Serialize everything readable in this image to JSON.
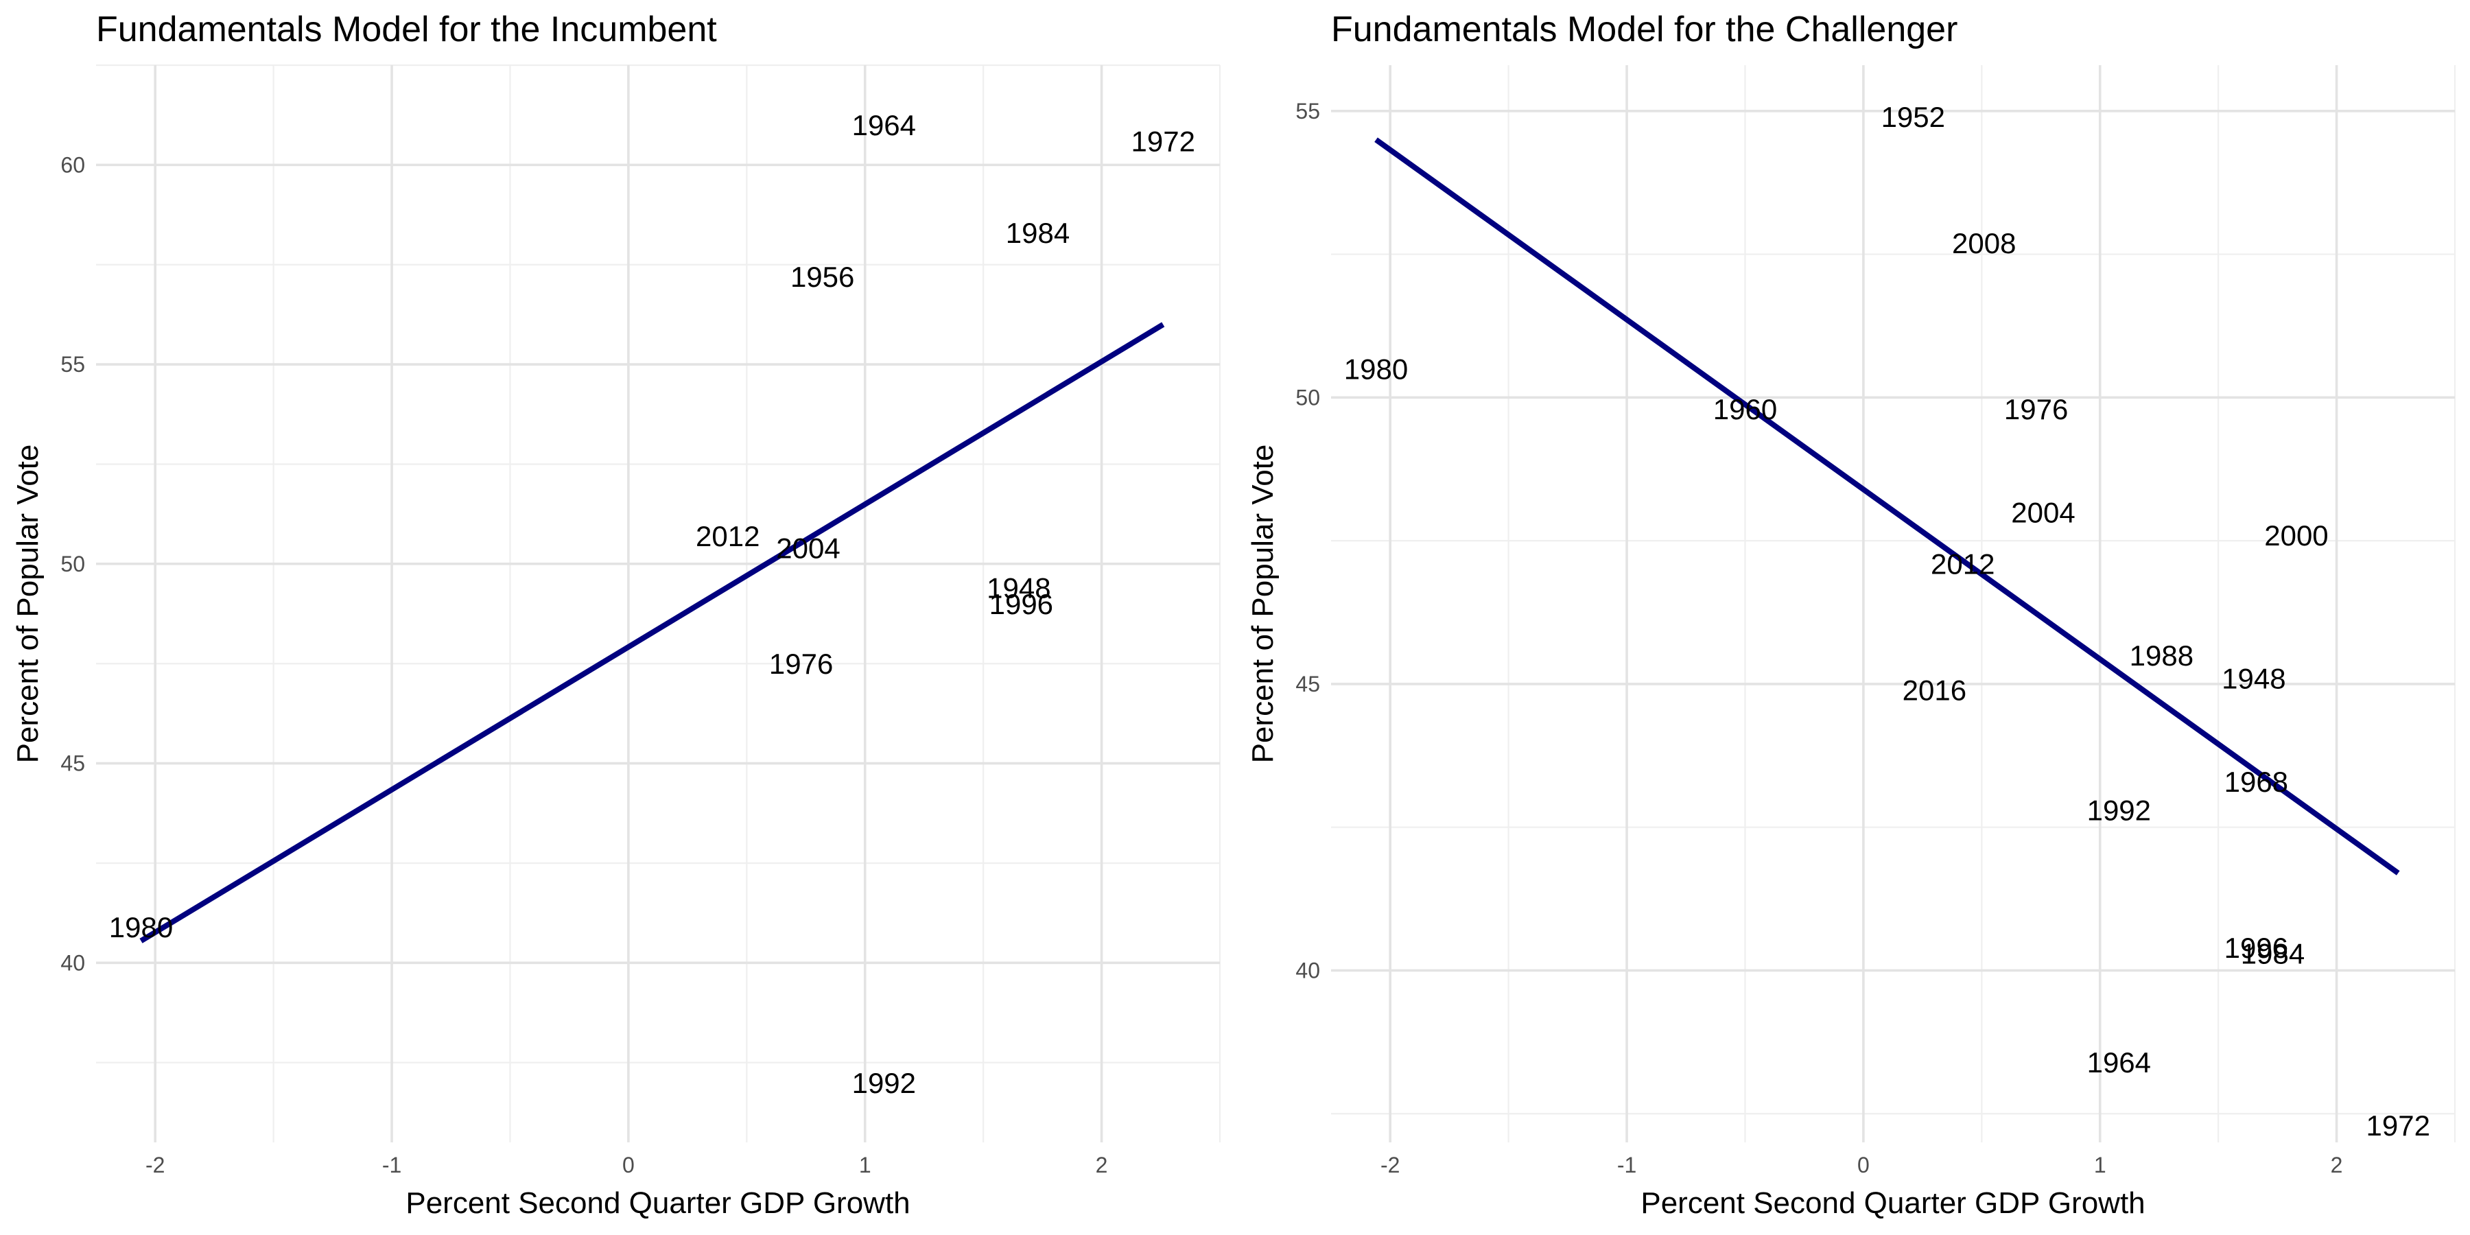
{
  "chart_data": [
    {
      "type": "scatter",
      "title": "Fundamentals Model for the Incumbent",
      "xlabel": "Percent Second Quarter GDP Growth",
      "ylabel": "Percent of Popular Vote",
      "xlim": [
        -2.25,
        2.5
      ],
      "ylim": [
        35.5,
        62.5
      ],
      "x_ticks": [
        -2,
        -1,
        0,
        1,
        2
      ],
      "y_ticks": [
        40,
        45,
        50,
        55,
        60
      ],
      "grid": true,
      "points": [
        {
          "label": "1964",
          "x": 1.08,
          "y": 61.0
        },
        {
          "label": "1972",
          "x": 2.26,
          "y": 60.6
        },
        {
          "label": "1984",
          "x": 1.73,
          "y": 58.3
        },
        {
          "label": "1956",
          "x": 0.82,
          "y": 57.2
        },
        {
          "label": "2012",
          "x": 0.42,
          "y": 50.7
        },
        {
          "label": "2004",
          "x": 0.76,
          "y": 50.4
        },
        {
          "label": "1948",
          "x": 1.65,
          "y": 49.4
        },
        {
          "label": "1996",
          "x": 1.66,
          "y": 49.0
        },
        {
          "label": "1976",
          "x": 0.73,
          "y": 47.5
        },
        {
          "label": "1980",
          "x": -2.06,
          "y": 40.9
        },
        {
          "label": "1992",
          "x": 1.08,
          "y": 37.0
        }
      ],
      "fit_line": {
        "x": [
          -2.06,
          2.26
        ],
        "y": [
          40.55,
          56.0
        ],
        "color": "#00007f"
      }
    },
    {
      "type": "scatter",
      "title": "Fundamentals Model for the Challenger",
      "xlabel": "Percent Second Quarter GDP Growth",
      "ylabel": "Percent of Popular Vote",
      "xlim": [
        -2.25,
        2.5
      ],
      "ylim": [
        37.0,
        55.8
      ],
      "x_ticks": [
        -2,
        -1,
        0,
        1,
        2
      ],
      "y_ticks": [
        40,
        45,
        50,
        55
      ],
      "grid": true,
      "points": [
        {
          "label": "1952",
          "x": 0.21,
          "y": 54.9
        },
        {
          "label": "2008",
          "x": 0.51,
          "y": 52.7
        },
        {
          "label": "1980",
          "x": -2.06,
          "y": 50.5
        },
        {
          "label": "1960",
          "x": -0.5,
          "y": 49.8
        },
        {
          "label": "1976",
          "x": 0.73,
          "y": 49.8
        },
        {
          "label": "2004",
          "x": 0.76,
          "y": 48.0
        },
        {
          "label": "2000",
          "x": 1.83,
          "y": 47.6
        },
        {
          "label": "2012",
          "x": 0.42,
          "y": 47.1
        },
        {
          "label": "1988",
          "x": 1.26,
          "y": 45.5
        },
        {
          "label": "1948",
          "x": 1.65,
          "y": 45.1
        },
        {
          "label": "2016",
          "x": 0.3,
          "y": 44.9
        },
        {
          "label": "1968",
          "x": 1.66,
          "y": 43.3
        },
        {
          "label": "1992",
          "x": 1.08,
          "y": 42.8
        },
        {
          "label": "1996",
          "x": 1.66,
          "y": 40.4
        },
        {
          "label": "1984",
          "x": 1.73,
          "y": 40.3
        },
        {
          "label": "1964",
          "x": 1.08,
          "y": 38.4
        },
        {
          "label": "1972",
          "x": 2.26,
          "y": 37.3
        }
      ],
      "fit_line": {
        "x": [
          -2.06,
          2.26
        ],
        "y": [
          54.5,
          41.7
        ],
        "color": "#00007f"
      }
    }
  ]
}
